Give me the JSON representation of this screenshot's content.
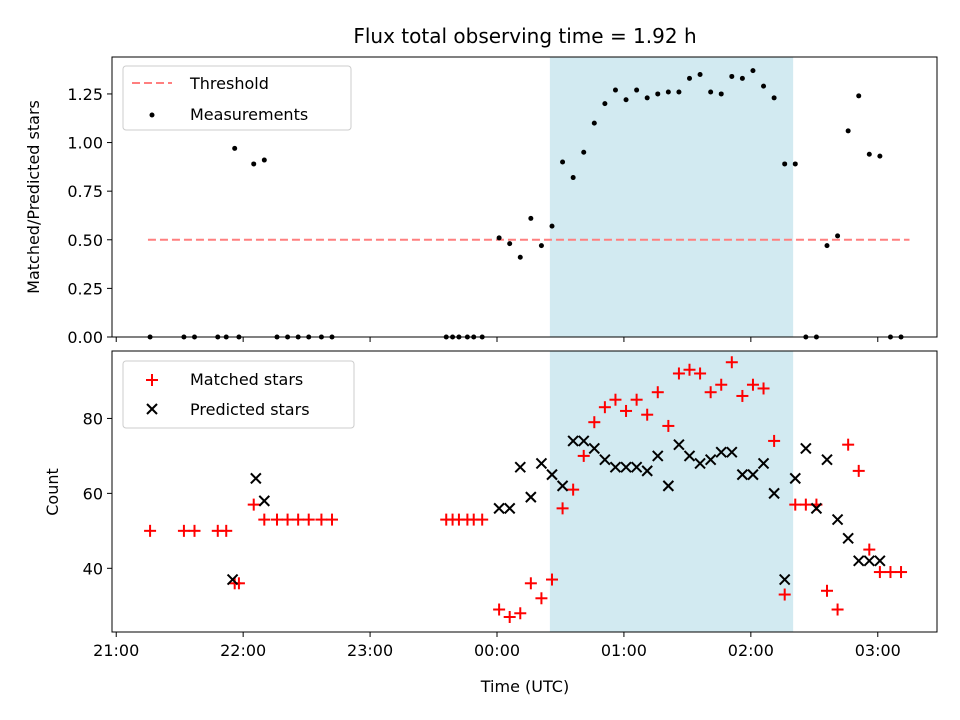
{
  "chart_data": [
    {
      "type": "scatter",
      "title": "Flux total observing time = 1.92 h",
      "xlabel": "",
      "ylabel": "Matched/Predicted stars",
      "ylim": [
        0,
        1.44
      ],
      "yticks": [
        "0.00",
        "0.25",
        "0.50",
        "0.75",
        "1.00",
        "1.25"
      ],
      "grid": false,
      "legend_position": "top-left",
      "shaded_interval": [
        "00:25",
        "02:20"
      ],
      "shade_color": "#add8e6",
      "series": [
        {
          "name": "Threshold",
          "style": "dashed-line",
          "color": "#ff7f7f",
          "x": [
            "21:15",
            "03:15"
          ],
          "y": [
            0.5,
            0.5
          ]
        },
        {
          "name": "Measurements",
          "style": "dot",
          "color": "#000000",
          "x": [
            "21:16",
            "21:32",
            "21:37",
            "21:48",
            "21:52",
            "21:56",
            "21:58",
            "22:05",
            "22:10",
            "22:16",
            "22:21",
            "22:26",
            "22:31",
            "22:37",
            "22:42",
            "23:36",
            "23:39",
            "23:42",
            "23:46",
            "23:49",
            "23:53",
            "24:01",
            "24:06",
            "24:11",
            "24:16",
            "24:21",
            "24:26",
            "24:31",
            "24:36",
            "24:41",
            "24:46",
            "24:51",
            "24:56",
            "25:01",
            "25:06",
            "25:11",
            "25:16",
            "25:21",
            "25:26",
            "25:31",
            "25:36",
            "25:41",
            "25:46",
            "25:51",
            "25:56",
            "26:01",
            "26:06",
            "26:11",
            "26:16",
            "26:21",
            "26:26",
            "26:31",
            "26:36",
            "26:41",
            "26:46",
            "26:51",
            "26:56",
            "27:01",
            "27:06",
            "27:11"
          ],
          "y": [
            0,
            0,
            0,
            0,
            0,
            0.97,
            0,
            0.89,
            0.91,
            0,
            0,
            0,
            0,
            0,
            0,
            0,
            0,
            0,
            0,
            0,
            0,
            0.51,
            0.48,
            0.41,
            0.61,
            0.47,
            0.57,
            0.9,
            0.82,
            0.95,
            1.1,
            1.2,
            1.27,
            1.22,
            1.27,
            1.23,
            1.25,
            1.26,
            1.26,
            1.33,
            1.35,
            1.26,
            1.25,
            1.34,
            1.33,
            1.37,
            1.29,
            1.23,
            0.89,
            0.89,
            0,
            0,
            0.47,
            0.52,
            1.06,
            1.24,
            0.94,
            0.93,
            0,
            0
          ]
        }
      ]
    },
    {
      "type": "scatter",
      "title": "",
      "xlabel": "Time (UTC)",
      "ylabel": "Count",
      "ylim": [
        23,
        98
      ],
      "yticks": [
        "40",
        "60",
        "80"
      ],
      "xticks": [
        "21:00",
        "22:00",
        "23:00",
        "00:00",
        "01:00",
        "02:00",
        "03:00"
      ],
      "x_range": [
        "20:58",
        "03:28"
      ],
      "grid": false,
      "legend_position": "top-left",
      "shaded_interval": [
        "00:25",
        "02:20"
      ],
      "shade_color": "#add8e6",
      "series": [
        {
          "name": "Matched stars",
          "marker": "+",
          "color": "#ff0000",
          "x": [
            "21:16",
            "21:32",
            "21:37",
            "21:48",
            "21:52",
            "21:56",
            "21:58",
            "22:05",
            "22:10",
            "22:16",
            "22:21",
            "22:26",
            "22:31",
            "22:37",
            "22:42",
            "23:36",
            "23:39",
            "23:42",
            "23:46",
            "23:49",
            "23:53",
            "24:01",
            "24:06",
            "24:11",
            "24:16",
            "24:21",
            "24:26",
            "24:31",
            "24:36",
            "24:41",
            "24:46",
            "24:51",
            "24:56",
            "25:01",
            "25:06",
            "25:11",
            "25:16",
            "25:21",
            "25:26",
            "25:31",
            "25:36",
            "25:41",
            "25:46",
            "25:51",
            "25:56",
            "26:01",
            "26:06",
            "26:11",
            "26:16",
            "26:21",
            "26:26",
            "26:31",
            "26:36",
            "26:41",
            "26:46",
            "26:51",
            "26:56",
            "27:01",
            "27:06",
            "27:11"
          ],
          "y": [
            50,
            50,
            50,
            50,
            50,
            36,
            36,
            57,
            53,
            53,
            53,
            53,
            53,
            53,
            53,
            53,
            53,
            53,
            53,
            53,
            53,
            29,
            27,
            28,
            36,
            32,
            37,
            56,
            61,
            70,
            79,
            83,
            85,
            82,
            85,
            81,
            87,
            78,
            92,
            93,
            92,
            87,
            89,
            95,
            86,
            89,
            88,
            74,
            33,
            57,
            57,
            57,
            34,
            29,
            73,
            66,
            45,
            39,
            39,
            39
          ]
        },
        {
          "name": "Predicted stars",
          "marker": "x",
          "color": "#000000",
          "x": [
            "21:55",
            "22:06",
            "22:10",
            "24:01",
            "24:06",
            "24:11",
            "24:16",
            "24:21",
            "24:26",
            "24:31",
            "24:36",
            "24:41",
            "24:46",
            "24:51",
            "24:56",
            "25:01",
            "25:06",
            "25:11",
            "25:16",
            "25:21",
            "25:26",
            "25:31",
            "25:36",
            "25:41",
            "25:46",
            "25:51",
            "25:56",
            "26:01",
            "26:06",
            "26:11",
            "26:16",
            "26:21",
            "26:26",
            "26:31",
            "26:36",
            "26:41",
            "26:46",
            "26:51",
            "26:56",
            "27:01"
          ],
          "y": [
            37,
            64,
            58,
            56,
            56,
            67,
            59,
            68,
            65,
            62,
            74,
            74,
            72,
            69,
            67,
            67,
            67,
            66,
            70,
            62,
            73,
            70,
            68,
            69,
            71,
            71,
            65,
            65,
            68,
            60,
            37,
            64,
            72,
            56,
            69,
            53,
            48,
            42,
            42,
            42
          ]
        }
      ]
    }
  ]
}
